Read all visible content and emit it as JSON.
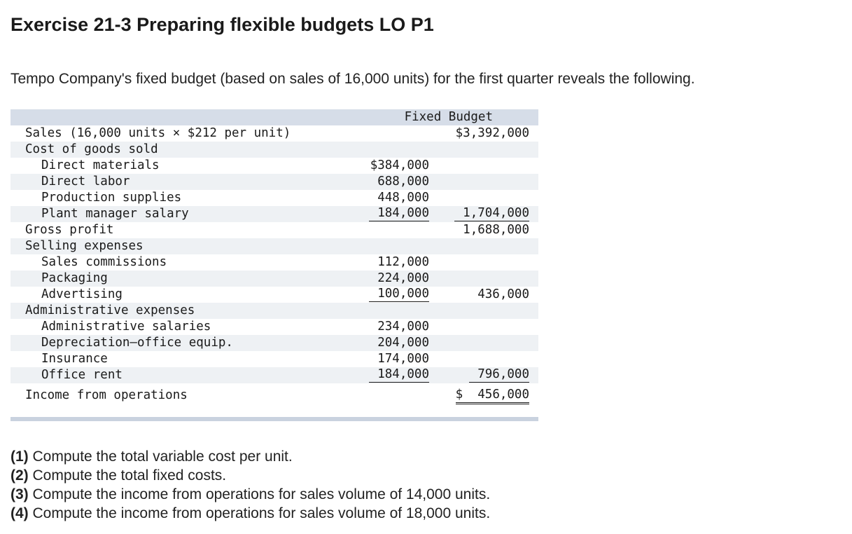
{
  "title": "Exercise 21-3 Preparing flexible budgets LO P1",
  "intro": "Tempo Company's fixed budget (based on sales of 16,000 units) for the first quarter reveals the following.",
  "table": {
    "header": "Fixed Budget",
    "rows": [
      {
        "label": "Sales (16,000 units × $212 per unit)",
        "indent": false,
        "c1": "",
        "c2": "$3,392,000"
      },
      {
        "label": "Cost of goods sold",
        "indent": false,
        "c1": "",
        "c2": ""
      },
      {
        "label": "Direct materials",
        "indent": true,
        "c1": "$384,000",
        "c2": ""
      },
      {
        "label": "Direct labor",
        "indent": true,
        "c1": "688,000",
        "c2": ""
      },
      {
        "label": "Production supplies",
        "indent": true,
        "c1": "448,000",
        "c2": ""
      },
      {
        "label": "Plant manager salary",
        "indent": true,
        "c1": "184,000",
        "c2": "1,704,000"
      },
      {
        "label": "Gross profit",
        "indent": false,
        "c1": "",
        "c2": "1,688,000"
      },
      {
        "label": "Selling expenses",
        "indent": false,
        "c1": "",
        "c2": ""
      },
      {
        "label": "Sales commissions",
        "indent": true,
        "c1": "112,000",
        "c2": ""
      },
      {
        "label": "Packaging",
        "indent": true,
        "c1": "224,000",
        "c2": ""
      },
      {
        "label": "Advertising",
        "indent": true,
        "c1": "100,000",
        "c2": "436,000"
      },
      {
        "label": "Administrative expenses",
        "indent": false,
        "c1": "",
        "c2": ""
      },
      {
        "label": "Administrative salaries",
        "indent": true,
        "c1": "234,000",
        "c2": ""
      },
      {
        "label": "Depreciation—office equip.",
        "indent": true,
        "c1": "204,000",
        "c2": ""
      },
      {
        "label": "Insurance",
        "indent": true,
        "c1": "174,000",
        "c2": ""
      },
      {
        "label": "Office rent",
        "indent": true,
        "c1": "184,000",
        "c2": "796,000"
      },
      {
        "label": "Income from operations",
        "indent": false,
        "c1": "",
        "c2": "$  456,000"
      }
    ]
  },
  "questions": [
    {
      "num": "(1)",
      "text": " Compute the total variable cost per unit."
    },
    {
      "num": "(2)",
      "text": " Compute the total fixed costs."
    },
    {
      "num": "(3)",
      "text": " Compute the income from operations for sales volume of 14,000 units."
    },
    {
      "num": "(4)",
      "text": " Compute the income from operations for sales volume of 18,000 units."
    }
  ]
}
